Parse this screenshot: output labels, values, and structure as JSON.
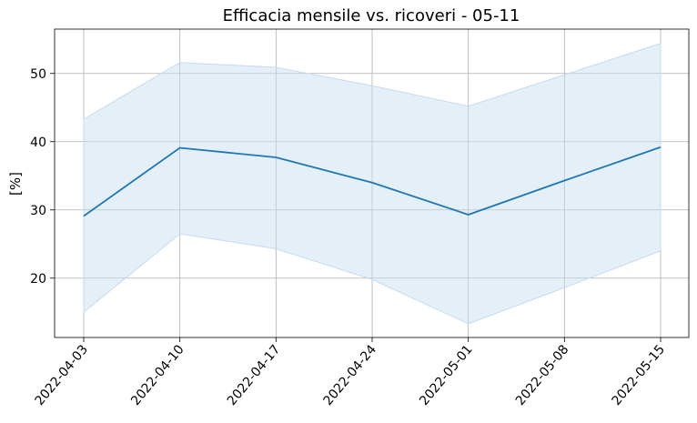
{
  "chart_data": {
    "type": "line",
    "title": "Efficacia mensile vs. ricoveri - 05-11",
    "xlabel": "",
    "ylabel": "[%]",
    "x": [
      "2022-04-03",
      "2022-04-10",
      "2022-04-17",
      "2022-04-24",
      "2022-05-01",
      "2022-05-08",
      "2022-05-15"
    ],
    "series": [
      {
        "values": [
          29.1,
          39.1,
          37.7,
          34.0,
          29.3,
          34.3,
          39.2
        ],
        "lower": [
          15.0,
          26.5,
          24.3,
          19.8,
          13.3,
          18.6,
          24.0
        ],
        "upper": [
          43.3,
          51.6,
          50.9,
          48.2,
          45.2,
          49.8,
          54.4
        ],
        "color": "#1f77b4",
        "band_color": "#c6dbef"
      }
    ],
    "yticks": [
      20,
      30,
      40,
      50
    ],
    "ylim": [
      11.3,
      56.5
    ],
    "grid": true
  }
}
